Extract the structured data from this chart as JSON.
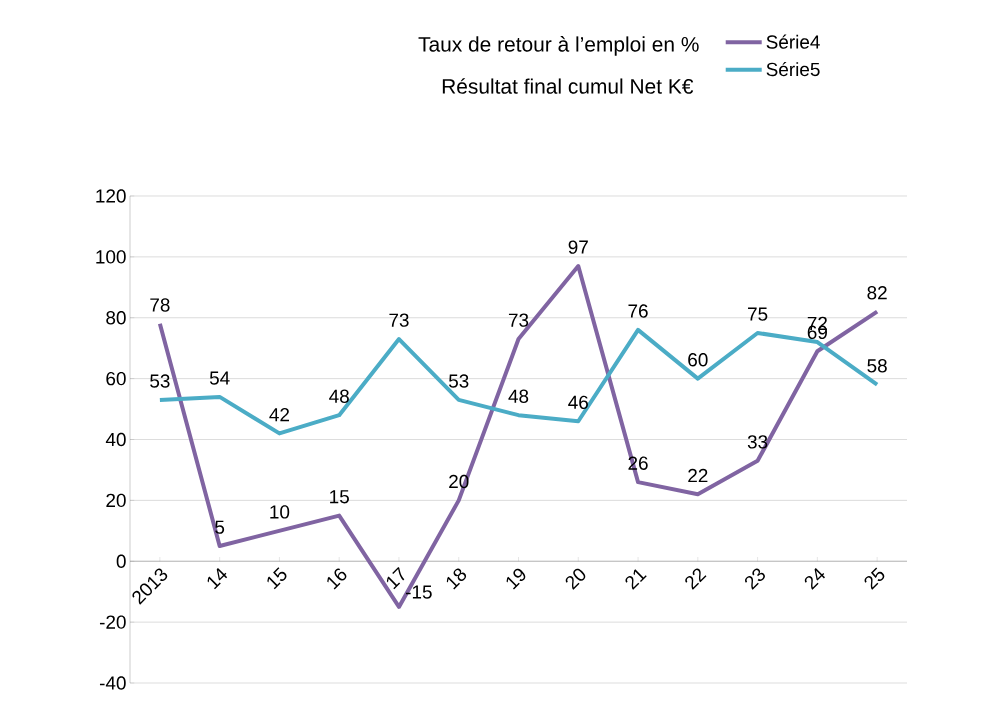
{
  "chart_data": {
    "type": "line",
    "title": "Taux de retour à l’emploi en %",
    "subtitle": "Résultat final cumul Net K€",
    "categories": [
      "2013",
      "14",
      "15",
      "16",
      "17",
      "18",
      "19",
      "20",
      "21",
      "22",
      "23",
      "24",
      "25"
    ],
    "series": [
      {
        "name": "Série4",
        "color": "#8064a2",
        "values": [
          78,
          5,
          10,
          15,
          -15,
          20,
          73,
          97,
          26,
          22,
          33,
          69,
          82
        ]
      },
      {
        "name": "Série5",
        "color": "#4bacc6",
        "values": [
          53,
          54,
          42,
          48,
          73,
          53,
          48,
          46,
          76,
          60,
          75,
          72,
          58
        ]
      }
    ],
    "ylim": [
      -40,
      120
    ],
    "yticks": [
      -40,
      -20,
      0,
      20,
      40,
      60,
      80,
      100,
      120
    ],
    "grid": "y",
    "legend": "top right",
    "data_labels": true,
    "marker": "none",
    "line_style": "solid"
  }
}
